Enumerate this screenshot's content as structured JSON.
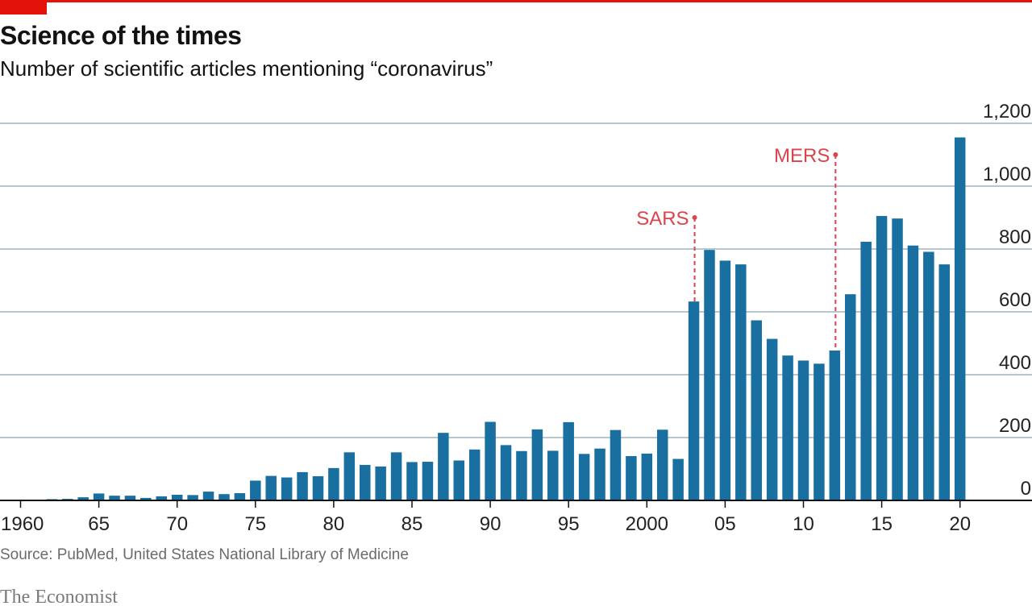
{
  "header": {
    "title": "Science of the times",
    "subtitle": "Number of scientific articles mentioning “coronavirus”"
  },
  "footer": {
    "source": "Source: PubMed, United States National Library of Medicine",
    "brand": "The Economist"
  },
  "colors": {
    "bar": "#1a6fa1",
    "accent": "#e3120b",
    "annotation": "#db444b",
    "grid": "#b7c6cf",
    "axis": "#121212"
  },
  "chart_data": {
    "type": "bar",
    "title": "Science of the times",
    "subtitle": "Number of scientific articles mentioning “coronavirus”",
    "xlabel": "",
    "ylabel": "",
    "ylim": [
      0,
      1200
    ],
    "yticks": [
      0,
      200,
      400,
      600,
      800,
      1000,
      1200
    ],
    "ytick_labels": [
      "0",
      "200",
      "400",
      "600",
      "800",
      "1,000",
      "1,200"
    ],
    "grid": true,
    "x": [
      1960,
      1961,
      1962,
      1963,
      1964,
      1965,
      1966,
      1967,
      1968,
      1969,
      1970,
      1971,
      1972,
      1973,
      1974,
      1975,
      1976,
      1977,
      1978,
      1979,
      1980,
      1981,
      1982,
      1983,
      1984,
      1985,
      1986,
      1987,
      1988,
      1989,
      1990,
      1991,
      1992,
      1993,
      1994,
      1995,
      1996,
      1997,
      1998,
      1999,
      2000,
      2001,
      2002,
      2003,
      2004,
      2005,
      2006,
      2007,
      2008,
      2009,
      2010,
      2011,
      2012,
      2013,
      2014,
      2015,
      2016,
      2017,
      2018,
      2019,
      2020
    ],
    "values": [
      2,
      2,
      4,
      5,
      10,
      22,
      15,
      15,
      8,
      13,
      18,
      17,
      28,
      20,
      23,
      63,
      78,
      73,
      90,
      77,
      103,
      153,
      113,
      108,
      153,
      122,
      123,
      215,
      127,
      162,
      250,
      176,
      157,
      226,
      158,
      249,
      148,
      165,
      224,
      141,
      149,
      225,
      132,
      633,
      797,
      763,
      751,
      573,
      514,
      461,
      445,
      435,
      477,
      656,
      823,
      905,
      897,
      811,
      791,
      751,
      1155
    ],
    "xtick_labels": [
      {
        "year": 1960,
        "label": "1960"
      },
      {
        "year": 1965,
        "label": "65"
      },
      {
        "year": 1970,
        "label": "70"
      },
      {
        "year": 1975,
        "label": "75"
      },
      {
        "year": 1980,
        "label": "80"
      },
      {
        "year": 1985,
        "label": "85"
      },
      {
        "year": 1990,
        "label": "90"
      },
      {
        "year": 1995,
        "label": "95"
      },
      {
        "year": 2000,
        "label": "2000"
      },
      {
        "year": 2005,
        "label": "05"
      },
      {
        "year": 2010,
        "label": "10"
      },
      {
        "year": 2015,
        "label": "15"
      },
      {
        "year": 2020,
        "label": "20"
      }
    ],
    "annotations": [
      {
        "year": 2003,
        "label": "SARS",
        "value": 900
      },
      {
        "year": 2012,
        "label": "MERS",
        "value": 1100
      }
    ]
  }
}
